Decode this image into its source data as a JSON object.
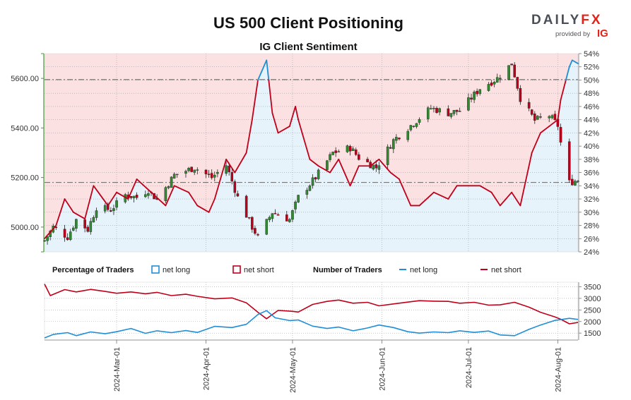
{
  "header": {
    "title": "US 500 Client Positioning",
    "subtitle": "IG Client Sentiment"
  },
  "brand": {
    "logo_main": "DAILY",
    "logo_accent": "FX",
    "provided_by": "provided by",
    "provider": "IG",
    "accent_color": "#e2231a"
  },
  "legend": {
    "percentage_title": "Percentage of Traders",
    "pct_net_long": "net long",
    "pct_net_short": "net short",
    "number_title": "Number of Traders",
    "num_net_long": "net long",
    "num_net_short": "net short"
  },
  "chart_data": [
    {
      "type": "candlestick",
      "name": "price",
      "x_range": [
        "2024-02-05",
        "2024-08-08"
      ],
      "y_range": [
        4900,
        5700
      ],
      "y_ticks": [
        5000,
        5200,
        5400,
        5600
      ],
      "y_tick_labels": [
        "5000.00",
        "5200.00",
        "5400.00",
        "5600.00"
      ],
      "reference_line": 5595,
      "price_path": [
        [
          "2024-02-05",
          4945
        ],
        [
          "2024-02-08",
          5000
        ],
        [
          "2024-02-13",
          4960
        ],
        [
          "2024-02-16",
          5030
        ],
        [
          "2024-02-20",
          4990
        ],
        [
          "2024-02-23",
          5080
        ],
        [
          "2024-02-28",
          5070
        ],
        [
          "2024-03-04",
          5130
        ],
        [
          "2024-03-08",
          5120
        ],
        [
          "2024-03-12",
          5150
        ],
        [
          "2024-03-15",
          5110
        ],
        [
          "2024-03-21",
          5210
        ],
        [
          "2024-03-28",
          5240
        ],
        [
          "2024-04-03",
          5200
        ],
        [
          "2024-04-08",
          5250
        ],
        [
          "2024-04-12",
          5120
        ],
        [
          "2024-04-17",
          5000
        ],
        [
          "2024-04-19",
          4960
        ],
        [
          "2024-04-24",
          5060
        ],
        [
          "2024-04-30",
          5030
        ],
        [
          "2024-05-03",
          5120
        ],
        [
          "2024-05-09",
          5200
        ],
        [
          "2024-05-15",
          5300
        ],
        [
          "2024-05-21",
          5320
        ],
        [
          "2024-05-24",
          5280
        ],
        [
          "2024-05-30",
          5240
        ],
        [
          "2024-06-05",
          5350
        ],
        [
          "2024-06-12",
          5420
        ],
        [
          "2024-06-18",
          5480
        ],
        [
          "2024-06-24",
          5460
        ],
        [
          "2024-06-28",
          5470
        ],
        [
          "2024-07-05",
          5560
        ],
        [
          "2024-07-11",
          5600
        ],
        [
          "2024-07-16",
          5660
        ],
        [
          "2024-07-19",
          5520
        ],
        [
          "2024-07-24",
          5430
        ],
        [
          "2024-07-29",
          5450
        ],
        [
          "2024-08-01",
          5410
        ],
        [
          "2024-08-02",
          5340
        ],
        [
          "2024-08-05",
          5180
        ],
        [
          "2024-08-08",
          5190
        ]
      ]
    },
    {
      "type": "line",
      "name": "sentiment",
      "y_range_percent": [
        24,
        54
      ],
      "y_ticks_percent": [
        24,
        26,
        28,
        30,
        32,
        34,
        36,
        38,
        40,
        42,
        44,
        46,
        48,
        50,
        52,
        54
      ],
      "y_tick_labels": [
        "24%",
        "26%",
        "28%",
        "30%",
        "32%",
        "34%",
        "36%",
        "38%",
        "40%",
        "42%",
        "44%",
        "46%",
        "48%",
        "50%",
        "52%",
        "54%"
      ],
      "reference_percent": 50,
      "lower_reference_percent": 34.5,
      "net_long_percent": [
        [
          "2024-02-05",
          26
        ],
        [
          "2024-02-09",
          28
        ],
        [
          "2024-02-12",
          32
        ],
        [
          "2024-02-15",
          30
        ],
        [
          "2024-02-19",
          29
        ],
        [
          "2024-02-22",
          34
        ],
        [
          "2024-02-27",
          31
        ],
        [
          "2024-03-01",
          33
        ],
        [
          "2024-03-05",
          32
        ],
        [
          "2024-03-08",
          35
        ],
        [
          "2024-03-13",
          33
        ],
        [
          "2024-03-18",
          31
        ],
        [
          "2024-03-21",
          34
        ],
        [
          "2024-03-26",
          33
        ],
        [
          "2024-03-29",
          31
        ],
        [
          "2024-04-02",
          30
        ],
        [
          "2024-04-04",
          32
        ],
        [
          "2024-04-08",
          38
        ],
        [
          "2024-04-11",
          36
        ],
        [
          "2024-04-15",
          39
        ],
        [
          "2024-04-17",
          44
        ],
        [
          "2024-04-19",
          50
        ],
        [
          "2024-04-22",
          53
        ],
        [
          "2024-04-24",
          45
        ],
        [
          "2024-04-26",
          42
        ],
        [
          "2024-04-30",
          43
        ],
        [
          "2024-05-02",
          46
        ],
        [
          "2024-05-03",
          44
        ],
        [
          "2024-05-07",
          38
        ],
        [
          "2024-05-10",
          37
        ],
        [
          "2024-05-14",
          36
        ],
        [
          "2024-05-17",
          38
        ],
        [
          "2024-05-21",
          34
        ],
        [
          "2024-05-24",
          37
        ],
        [
          "2024-05-28",
          37
        ],
        [
          "2024-05-31",
          38
        ],
        [
          "2024-06-04",
          36
        ],
        [
          "2024-06-07",
          35
        ],
        [
          "2024-06-11",
          31
        ],
        [
          "2024-06-14",
          31
        ],
        [
          "2024-06-19",
          33
        ],
        [
          "2024-06-24",
          32
        ],
        [
          "2024-06-27",
          34
        ],
        [
          "2024-07-01",
          34
        ],
        [
          "2024-07-05",
          34
        ],
        [
          "2024-07-09",
          33
        ],
        [
          "2024-07-12",
          31
        ],
        [
          "2024-07-16",
          33
        ],
        [
          "2024-07-19",
          31
        ],
        [
          "2024-07-23",
          39
        ],
        [
          "2024-07-26",
          42
        ],
        [
          "2024-07-29",
          43
        ],
        [
          "2024-08-01",
          44
        ],
        [
          "2024-08-02",
          47
        ],
        [
          "2024-08-05",
          52
        ],
        [
          "2024-08-06",
          53
        ],
        [
          "2024-08-08",
          52.5
        ]
      ]
    },
    {
      "type": "line",
      "name": "number_of_traders",
      "y_range": [
        1200,
        3700
      ],
      "y_ticks": [
        1500,
        2000,
        2500,
        3000,
        3500
      ],
      "y_tick_labels": [
        "1500",
        "2000",
        "2500",
        "3000",
        "3500"
      ],
      "series": [
        {
          "name": "net short",
          "color": "#c0001a",
          "points": [
            [
              "2024-02-05",
              3620
            ],
            [
              "2024-02-07",
              3120
            ],
            [
              "2024-02-12",
              3380
            ],
            [
              "2024-02-16",
              3280
            ],
            [
              "2024-02-21",
              3390
            ],
            [
              "2024-02-26",
              3300
            ],
            [
              "2024-03-01",
              3220
            ],
            [
              "2024-03-06",
              3280
            ],
            [
              "2024-03-11",
              3200
            ],
            [
              "2024-03-15",
              3260
            ],
            [
              "2024-03-20",
              3120
            ],
            [
              "2024-03-25",
              3180
            ],
            [
              "2024-03-29",
              3090
            ],
            [
              "2024-04-04",
              2980
            ],
            [
              "2024-04-10",
              3020
            ],
            [
              "2024-04-15",
              2810
            ],
            [
              "2024-04-19",
              2400
            ],
            [
              "2024-04-22",
              2120
            ],
            [
              "2024-04-26",
              2480
            ],
            [
              "2024-05-01",
              2440
            ],
            [
              "2024-05-03",
              2410
            ],
            [
              "2024-05-08",
              2740
            ],
            [
              "2024-05-13",
              2870
            ],
            [
              "2024-05-17",
              2930
            ],
            [
              "2024-05-22",
              2790
            ],
            [
              "2024-05-27",
              2830
            ],
            [
              "2024-05-31",
              2680
            ],
            [
              "2024-06-05",
              2760
            ],
            [
              "2024-06-10",
              2840
            ],
            [
              "2024-06-14",
              2900
            ],
            [
              "2024-06-19",
              2880
            ],
            [
              "2024-06-24",
              2870
            ],
            [
              "2024-06-28",
              2790
            ],
            [
              "2024-07-03",
              2830
            ],
            [
              "2024-07-08",
              2710
            ],
            [
              "2024-07-12",
              2720
            ],
            [
              "2024-07-17",
              2830
            ],
            [
              "2024-07-22",
              2620
            ],
            [
              "2024-07-26",
              2400
            ],
            [
              "2024-07-31",
              2200
            ],
            [
              "2024-08-02",
              2100
            ],
            [
              "2024-08-05",
              1900
            ],
            [
              "2024-08-08",
              1960
            ]
          ]
        },
        {
          "name": "net long",
          "color": "#1f8ed8",
          "points": [
            [
              "2024-02-05",
              1290
            ],
            [
              "2024-02-08",
              1440
            ],
            [
              "2024-02-13",
              1520
            ],
            [
              "2024-02-16",
              1390
            ],
            [
              "2024-02-21",
              1550
            ],
            [
              "2024-02-26",
              1470
            ],
            [
              "2024-03-01",
              1560
            ],
            [
              "2024-03-06",
              1700
            ],
            [
              "2024-03-11",
              1490
            ],
            [
              "2024-03-15",
              1600
            ],
            [
              "2024-03-20",
              1520
            ],
            [
              "2024-03-25",
              1610
            ],
            [
              "2024-03-29",
              1530
            ],
            [
              "2024-04-04",
              1790
            ],
            [
              "2024-04-10",
              1740
            ],
            [
              "2024-04-15",
              1880
            ],
            [
              "2024-04-19",
              2300
            ],
            [
              "2024-04-22",
              2470
            ],
            [
              "2024-04-25",
              2160
            ],
            [
              "2024-04-30",
              2040
            ],
            [
              "2024-05-03",
              2070
            ],
            [
              "2024-05-08",
              1800
            ],
            [
              "2024-05-13",
              1700
            ],
            [
              "2024-05-17",
              1760
            ],
            [
              "2024-05-22",
              1600
            ],
            [
              "2024-05-27",
              1720
            ],
            [
              "2024-05-31",
              1850
            ],
            [
              "2024-06-05",
              1740
            ],
            [
              "2024-06-10",
              1560
            ],
            [
              "2024-06-14",
              1500
            ],
            [
              "2024-06-19",
              1550
            ],
            [
              "2024-06-24",
              1520
            ],
            [
              "2024-06-28",
              1600
            ],
            [
              "2024-07-03",
              1530
            ],
            [
              "2024-07-08",
              1590
            ],
            [
              "2024-07-12",
              1420
            ],
            [
              "2024-07-17",
              1390
            ],
            [
              "2024-07-22",
              1660
            ],
            [
              "2024-07-26",
              1850
            ],
            [
              "2024-07-31",
              2050
            ],
            [
              "2024-08-02",
              2080
            ],
            [
              "2024-08-05",
              2140
            ],
            [
              "2024-08-08",
              2090
            ]
          ]
        }
      ]
    }
  ],
  "x_axis": {
    "ticks": [
      {
        "date": "2024-03-01",
        "label": "2024-Mar-01"
      },
      {
        "date": "2024-04-01",
        "label": "2024-Apr-01"
      },
      {
        "date": "2024-05-01",
        "label": "2024-May-01"
      },
      {
        "date": "2024-06-01",
        "label": "2024-Jun-01"
      },
      {
        "date": "2024-07-01",
        "label": "2024-Jul-01"
      },
      {
        "date": "2024-08-01",
        "label": "2024-Aug-01"
      }
    ]
  },
  "colors": {
    "net_long": "#1f8ed8",
    "net_short": "#c0001a",
    "net_long_fill": "#e6f3fb",
    "net_short_fill": "#fbe1e1",
    "candle_up": "#2e8b2e",
    "candle_down": "#c0001a",
    "price_axis": "#4a9a3a"
  }
}
